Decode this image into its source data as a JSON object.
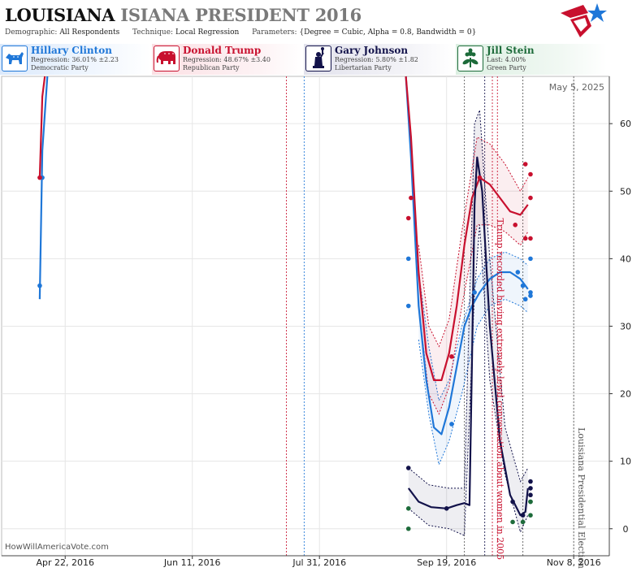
{
  "header": {
    "title_part1": "LOUISIANA",
    "title_part2": "ISIANA PRESIDENT 2016",
    "demographic_label": "Demographic:",
    "demographic_value": "All Respondents",
    "technique_label": "Technique:",
    "technique_value": "Local Regression",
    "parameters_label": "Parameters:",
    "parameters_value": "{Degree = Cubic, Alpha = 0.8, Bandwidth = 0}",
    "logo_icon": "star-flag-logo-icon"
  },
  "candidates": [
    {
      "name": "Hillary Clinton",
      "stat": "Regression: 36.01% ±2.23",
      "party": "Democratic Party",
      "color": "#1f77d8",
      "icon": "donkey-icon"
    },
    {
      "name": "Donald Trump",
      "stat": "Regression: 48.67% ±3.40",
      "party": "Republican Party",
      "color": "#c8102e",
      "icon": "elephant-icon"
    },
    {
      "name": "Gary Johnson",
      "stat": "Regression: 5.80% ±1.82",
      "party": "Libertarian Party",
      "color": "#12124a",
      "icon": "statue-of-liberty-icon"
    },
    {
      "name": "Jill Stein",
      "stat": "Last: 4.00%",
      "party": "Green Party",
      "color": "#1d6b3a",
      "icon": "flower-icon"
    }
  ],
  "watermark": "HowWillAmericaVote.com",
  "chart_data": {
    "type": "line",
    "date_label": "May 5, 2025",
    "x_ticks": [
      "Apr 22, 2016",
      "Jun 11, 2016",
      "Jul 31, 2016",
      "Sep 19, 2016",
      "Nov 8, 2016"
    ],
    "x_range": [
      "2016-03-28",
      "2016-11-22"
    ],
    "y_ticks": [
      0,
      10,
      20,
      30,
      40,
      50,
      60
    ],
    "y_range": [
      -4,
      67
    ],
    "grid": true,
    "annotations": [
      {
        "text": "Trump recorded having extremely lewd conversation about women in 2005",
        "date": "2016-10-07",
        "color": "#c8102e"
      },
      {
        "text": "Louisiana Presidential Election",
        "date": "2016-11-08",
        "color": "#555555"
      }
    ],
    "event_lines": [
      {
        "date": "2016-07-18",
        "color": "#c8102e"
      },
      {
        "date": "2016-07-25",
        "color": "#1f77d8"
      },
      {
        "date": "2016-09-26",
        "color": "#555555"
      },
      {
        "date": "2016-10-04",
        "color": "#12124a"
      },
      {
        "date": "2016-10-07",
        "color": "#c8102e"
      },
      {
        "date": "2016-10-09",
        "color": "#c8102e"
      },
      {
        "date": "2016-10-19",
        "color": "#555555"
      },
      {
        "date": "2016-11-08",
        "color": "#555555"
      }
    ],
    "series": [
      {
        "name": "Hillary Clinton",
        "color": "#1f77d8",
        "line": [
          [
            "2016-04-12",
            34
          ],
          [
            "2016-04-13",
            56
          ],
          [
            "2016-04-15",
            72
          ]
        ],
        "line_b": [
          [
            "2016-09-03",
            72
          ],
          [
            "2016-09-05",
            55
          ],
          [
            "2016-09-08",
            33
          ],
          [
            "2016-09-11",
            22
          ],
          [
            "2016-09-14",
            15
          ],
          [
            "2016-09-17",
            14
          ],
          [
            "2016-09-20",
            18
          ],
          [
            "2016-09-23",
            24
          ],
          [
            "2016-09-26",
            30
          ],
          [
            "2016-09-29",
            33
          ],
          [
            "2016-10-02",
            35
          ],
          [
            "2016-10-06",
            37
          ],
          [
            "2016-10-10",
            38
          ],
          [
            "2016-10-14",
            38
          ],
          [
            "2016-10-18",
            37
          ],
          [
            "2016-10-21",
            35.5
          ]
        ],
        "upper": [
          [
            "2016-09-08",
            38
          ],
          [
            "2016-09-12",
            27
          ],
          [
            "2016-09-16",
            19
          ],
          [
            "2016-09-20",
            22
          ],
          [
            "2016-09-25",
            30
          ],
          [
            "2016-10-01",
            37
          ],
          [
            "2016-10-06",
            40
          ],
          [
            "2016-10-12",
            41
          ],
          [
            "2016-10-18",
            40
          ],
          [
            "2016-10-21",
            39
          ]
        ],
        "lower": [
          [
            "2016-09-08",
            28
          ],
          [
            "2016-09-12",
            17
          ],
          [
            "2016-09-16",
            9.5
          ],
          [
            "2016-09-20",
            13
          ],
          [
            "2016-09-25",
            20
          ],
          [
            "2016-10-01",
            30
          ],
          [
            "2016-10-06",
            33
          ],
          [
            "2016-10-12",
            34
          ],
          [
            "2016-10-18",
            33
          ],
          [
            "2016-10-21",
            32
          ]
        ],
        "points": [
          [
            "2016-04-12",
            36
          ],
          [
            "2016-04-13",
            52
          ],
          [
            "2016-09-04",
            40
          ],
          [
            "2016-09-04",
            33
          ],
          [
            "2016-09-21",
            15.5
          ],
          [
            "2016-09-30",
            35
          ],
          [
            "2016-10-17",
            38
          ],
          [
            "2016-10-19",
            36
          ],
          [
            "2016-10-20",
            34
          ],
          [
            "2016-10-22",
            35
          ],
          [
            "2016-10-22",
            34.5
          ],
          [
            "2016-10-22",
            40
          ]
        ]
      },
      {
        "name": "Donald Trump",
        "color": "#c8102e",
        "line": [
          [
            "2016-04-12",
            52
          ],
          [
            "2016-04-13",
            64
          ],
          [
            "2016-04-14",
            72
          ]
        ],
        "line_b": [
          [
            "2016-09-03",
            72
          ],
          [
            "2016-09-05",
            58
          ],
          [
            "2016-09-08",
            38
          ],
          [
            "2016-09-11",
            26
          ],
          [
            "2016-09-14",
            22
          ],
          [
            "2016-09-17",
            22
          ],
          [
            "2016-09-20",
            26
          ],
          [
            "2016-09-23",
            33
          ],
          [
            "2016-09-26",
            42
          ],
          [
            "2016-09-29",
            49
          ],
          [
            "2016-10-02",
            52
          ],
          [
            "2016-10-06",
            51
          ],
          [
            "2016-10-10",
            49
          ],
          [
            "2016-10-14",
            47
          ],
          [
            "2016-10-18",
            46.5
          ],
          [
            "2016-10-21",
            48
          ]
        ],
        "upper": [
          [
            "2016-09-08",
            42
          ],
          [
            "2016-09-12",
            30
          ],
          [
            "2016-09-16",
            27
          ],
          [
            "2016-09-20",
            31
          ],
          [
            "2016-09-25",
            44
          ],
          [
            "2016-10-01",
            58
          ],
          [
            "2016-10-06",
            57
          ],
          [
            "2016-10-12",
            54
          ],
          [
            "2016-10-18",
            50
          ],
          [
            "2016-10-21",
            52
          ]
        ],
        "lower": [
          [
            "2016-09-08",
            33
          ],
          [
            "2016-09-12",
            20
          ],
          [
            "2016-09-16",
            17
          ],
          [
            "2016-09-20",
            21
          ],
          [
            "2016-09-25",
            33
          ],
          [
            "2016-10-01",
            45
          ],
          [
            "2016-10-06",
            45
          ],
          [
            "2016-10-12",
            44
          ],
          [
            "2016-10-18",
            42
          ],
          [
            "2016-10-21",
            44
          ]
        ],
        "points": [
          [
            "2016-04-12",
            52
          ],
          [
            "2016-09-04",
            46
          ],
          [
            "2016-09-05",
            49
          ],
          [
            "2016-09-21",
            25.5
          ],
          [
            "2016-10-02",
            52
          ],
          [
            "2016-10-16",
            45
          ],
          [
            "2016-10-20",
            43
          ],
          [
            "2016-10-20",
            54
          ],
          [
            "2016-10-22",
            52.5
          ],
          [
            "2016-10-22",
            49
          ],
          [
            "2016-10-22",
            43
          ]
        ]
      },
      {
        "name": "Gary Johnson",
        "color": "#12124a",
        "line": [
          [
            "2016-09-04",
            6
          ],
          [
            "2016-09-08",
            4
          ],
          [
            "2016-09-13",
            3.2
          ],
          [
            "2016-09-19",
            3
          ],
          [
            "2016-09-23",
            3.5
          ],
          [
            "2016-09-26",
            3.8
          ],
          [
            "2016-09-28",
            3.5
          ],
          [
            "2016-09-29",
            25
          ],
          [
            "2016-09-30",
            48
          ],
          [
            "2016-10-01",
            55
          ],
          [
            "2016-10-03",
            50
          ],
          [
            "2016-10-06",
            30
          ],
          [
            "2016-10-10",
            13
          ],
          [
            "2016-10-14",
            5
          ],
          [
            "2016-10-18",
            2
          ],
          [
            "2016-10-20",
            2.5
          ],
          [
            "2016-10-21",
            6
          ]
        ],
        "upper": [
          [
            "2016-09-04",
            9
          ],
          [
            "2016-09-12",
            6.5
          ],
          [
            "2016-09-20",
            6
          ],
          [
            "2016-09-26",
            6
          ],
          [
            "2016-09-30",
            60
          ],
          [
            "2016-10-02",
            62
          ],
          [
            "2016-10-06",
            40
          ],
          [
            "2016-10-12",
            15
          ],
          [
            "2016-10-18",
            7
          ],
          [
            "2016-10-21",
            9
          ]
        ],
        "lower": [
          [
            "2016-09-04",
            3
          ],
          [
            "2016-09-12",
            0.5
          ],
          [
            "2016-09-20",
            0
          ],
          [
            "2016-09-26",
            -1
          ],
          [
            "2016-09-30",
            35
          ],
          [
            "2016-10-02",
            45
          ],
          [
            "2016-10-06",
            22
          ],
          [
            "2016-10-12",
            8
          ],
          [
            "2016-10-18",
            -0.5
          ],
          [
            "2016-10-21",
            2
          ]
        ],
        "points": [
          [
            "2016-09-04",
            9
          ],
          [
            "2016-09-19",
            3
          ],
          [
            "2016-10-15",
            4
          ],
          [
            "2016-10-19",
            2
          ],
          [
            "2016-10-22",
            7
          ],
          [
            "2016-10-22",
            6
          ],
          [
            "2016-10-22",
            5
          ]
        ]
      },
      {
        "name": "Jill Stein",
        "color": "#1d6b3a",
        "points": [
          [
            "2016-09-04",
            3
          ],
          [
            "2016-09-04",
            0
          ],
          [
            "2016-10-15",
            1
          ],
          [
            "2016-10-19",
            1
          ],
          [
            "2016-10-22",
            2
          ],
          [
            "2016-10-22",
            4
          ],
          [
            "2016-10-22",
            4
          ]
        ]
      }
    ]
  }
}
